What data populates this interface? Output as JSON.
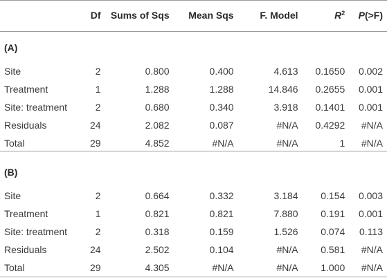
{
  "header": {
    "df": "Df",
    "sums": "Sums of Sqs",
    "mean": "Mean Sqs",
    "fmodel": "F. Model",
    "r2_base": "R",
    "r2_sup": "2",
    "p_base": "P",
    "p_rest": "(>F)"
  },
  "sections": [
    {
      "title": "(A)",
      "rows": [
        [
          "Site",
          "2",
          "0.800",
          "0.400",
          "4.613",
          "0.1650",
          "0.002"
        ],
        [
          "Treatment",
          "1",
          "1.288",
          "1.288",
          "14.846",
          "0.2655",
          "0.001"
        ],
        [
          "Site: treatment",
          "2",
          "0.680",
          "0.340",
          "3.918",
          "0.1401",
          "0.001"
        ],
        [
          "Residuals",
          "24",
          "2.082",
          "0.087",
          "#N/A",
          "0.4292",
          "#N/A"
        ],
        [
          "Total",
          "29",
          "4.852",
          "#N/A",
          "#N/A",
          "1",
          "#N/A"
        ]
      ]
    },
    {
      "title": "(B)",
      "rows": [
        [
          "Site",
          "2",
          "0.664",
          "0.332",
          "3.184",
          "0.154",
          "0.003"
        ],
        [
          "Treatment",
          "1",
          "0.821",
          "0.821",
          "7.880",
          "0.191",
          "0.001"
        ],
        [
          "Site: treatment",
          "2",
          "0.318",
          "0.159",
          "1.526",
          "0.074",
          "0.113"
        ],
        [
          "Residuals",
          "24",
          "2.502",
          "0.104",
          "#N/A",
          "0.581",
          "#N/A"
        ],
        [
          "Total",
          "29",
          "4.305",
          "#N/A",
          "#N/A",
          "1.000",
          "#N/A"
        ]
      ]
    }
  ]
}
